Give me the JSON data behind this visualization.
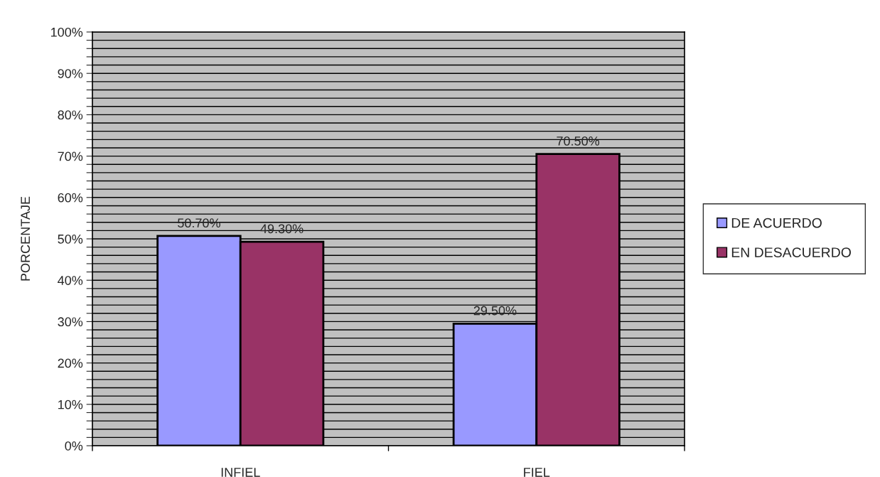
{
  "chart_data": {
    "type": "bar",
    "ylabel": "PORCENTAJE",
    "categories": [
      "INFIEL",
      "FIEL"
    ],
    "series": [
      {
        "name": "DE ACUERDO",
        "color": "#9999ff",
        "values": [
          50.7,
          29.5
        ],
        "value_labels": [
          "50.70%",
          "29.50%"
        ]
      },
      {
        "name": "EN DESACUERDO",
        "color": "#993366",
        "values": [
          49.3,
          70.5
        ],
        "value_labels": [
          "49.30%",
          "70.50%"
        ]
      }
    ],
    "ylim": [
      0,
      100
    ],
    "yticks": [
      {
        "value": 0,
        "label": "0%"
      },
      {
        "value": 2,
        "label": null
      },
      {
        "value": 4,
        "label": null
      },
      {
        "value": 6,
        "label": null
      },
      {
        "value": 8,
        "label": null
      },
      {
        "value": 10,
        "label": "10%"
      },
      {
        "value": 12,
        "label": null
      },
      {
        "value": 14,
        "label": null
      },
      {
        "value": 16,
        "label": null
      },
      {
        "value": 18,
        "label": null
      },
      {
        "value": 20,
        "label": "20%"
      },
      {
        "value": 22,
        "label": null
      },
      {
        "value": 24,
        "label": null
      },
      {
        "value": 26,
        "label": null
      },
      {
        "value": 28,
        "label": null
      },
      {
        "value": 30,
        "label": "30%"
      },
      {
        "value": 32,
        "label": null
      },
      {
        "value": 34,
        "label": null
      },
      {
        "value": 36,
        "label": null
      },
      {
        "value": 38,
        "label": null
      },
      {
        "value": 40,
        "label": "40%"
      },
      {
        "value": 42,
        "label": null
      },
      {
        "value": 44,
        "label": null
      },
      {
        "value": 46,
        "label": null
      },
      {
        "value": 48,
        "label": null
      },
      {
        "value": 50,
        "label": "50%"
      },
      {
        "value": 52,
        "label": null
      },
      {
        "value": 54,
        "label": null
      },
      {
        "value": 56,
        "label": null
      },
      {
        "value": 58,
        "label": null
      },
      {
        "value": 60,
        "label": "60%"
      },
      {
        "value": 62,
        "label": null
      },
      {
        "value": 64,
        "label": null
      },
      {
        "value": 66,
        "label": null
      },
      {
        "value": 68,
        "label": null
      },
      {
        "value": 70,
        "label": "70%"
      },
      {
        "value": 72,
        "label": null
      },
      {
        "value": 74,
        "label": null
      },
      {
        "value": 76,
        "label": null
      },
      {
        "value": 78,
        "label": null
      },
      {
        "value": 80,
        "label": "80%"
      },
      {
        "value": 82,
        "label": null
      },
      {
        "value": 84,
        "label": null
      },
      {
        "value": 86,
        "label": null
      },
      {
        "value": 88,
        "label": null
      },
      {
        "value": 90,
        "label": "90%"
      },
      {
        "value": 92,
        "label": null
      },
      {
        "value": 94,
        "label": null
      },
      {
        "value": 96,
        "label": null
      },
      {
        "value": 98,
        "label": null
      },
      {
        "value": 100,
        "label": "100%"
      }
    ],
    "grid": "y",
    "legend": "right"
  }
}
